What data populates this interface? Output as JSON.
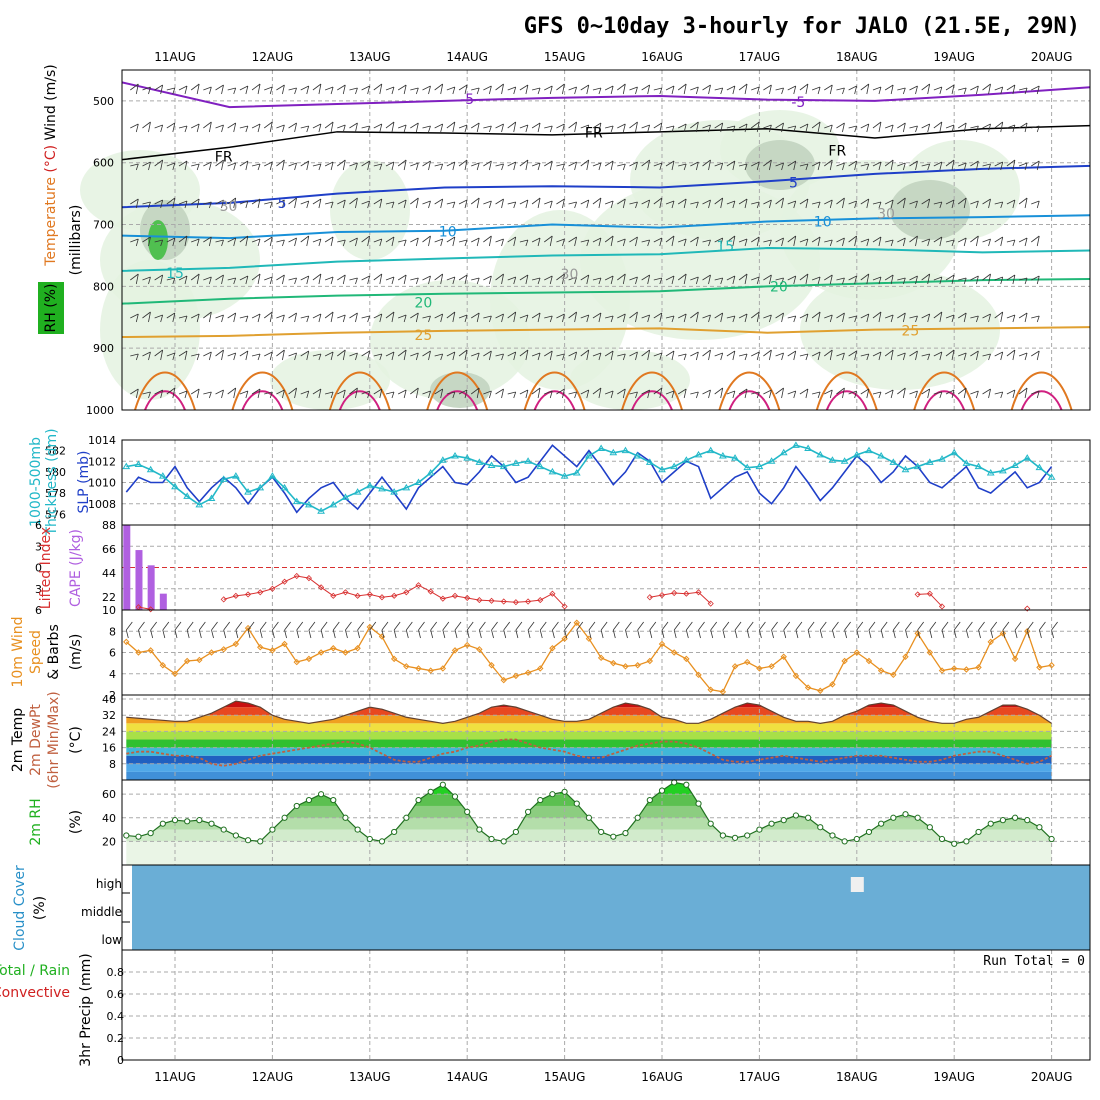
{
  "title": "GFS 0~10day 3-hourly for JALO (21.5E, 29N)",
  "dates": [
    "11AUG",
    "12AUG",
    "13AUG",
    "14AUG",
    "15AUG",
    "16AUG",
    "17AUG",
    "18AUG",
    "19AUG",
    "20AUG"
  ],
  "colors": {
    "slp": "#1f3fc8",
    "thickness": "#22b8c8",
    "lifted": "#d83030",
    "cape": "#b060e0",
    "wind10": "#e89020",
    "rh": "#20b020",
    "cloud": "#6aaed6",
    "dewpt": "#c06040",
    "hotter": "#c00000"
  },
  "chart_data": [
    {
      "panel": "upper-air",
      "type": "heatmap",
      "ylabel_parts": [
        "Temperature",
        "(°C)",
        "Wind",
        "(m/s)"
      ],
      "ylabel_unit": "(millibars)",
      "rh_label": "RH (%)",
      "ylim": [
        1000,
        450
      ],
      "yticks": [
        1000,
        900,
        800,
        700,
        600,
        500
      ],
      "contour_labels": [
        {
          "text": "-5",
          "day": 3.0,
          "p": 497
        },
        {
          "text": "-5",
          "day": 6.4,
          "p": 502
        },
        {
          "text": "FR",
          "day": 0.5,
          "p": 590
        },
        {
          "text": "FR",
          "day": 4.3,
          "p": 551
        },
        {
          "text": "FR",
          "day": 6.8,
          "p": 580
        },
        {
          "text": "5",
          "day": 1.1,
          "p": 665
        },
        {
          "text": "5",
          "day": 6.35,
          "p": 632
        },
        {
          "text": "10",
          "day": 2.8,
          "p": 711
        },
        {
          "text": "10",
          "day": 6.65,
          "p": 695
        },
        {
          "text": "15",
          "day": 0.0,
          "p": 778
        },
        {
          "text": "15",
          "day": 5.65,
          "p": 735
        },
        {
          "text": "20",
          "day": 2.55,
          "p": 826
        },
        {
          "text": "20",
          "day": 6.2,
          "p": 800
        },
        {
          "text": "25",
          "day": 2.55,
          "p": 879
        },
        {
          "text": "25",
          "day": 7.55,
          "p": 871
        },
        {
          "text": "30",
          "day": 0.55,
          "p": 670
        },
        {
          "text": "30",
          "day": 4.05,
          "p": 780
        },
        {
          "text": "30",
          "day": 7.3,
          "p": 682
        }
      ],
      "isotherms": [
        {
          "label": "-5",
          "p": [
            470,
            510,
            505,
            500,
            495,
            492,
            498,
            500,
            490,
            478
          ]
        },
        {
          "label": "FR",
          "p": [
            595,
            575,
            550,
            552,
            555,
            550,
            545,
            560,
            545,
            540
          ]
        },
        {
          "label": "5",
          "p": [
            672,
            665,
            650,
            640,
            638,
            640,
            630,
            618,
            610,
            605
          ]
        },
        {
          "label": "10",
          "p": [
            718,
            722,
            712,
            710,
            700,
            705,
            695,
            690,
            688,
            685
          ]
        },
        {
          "label": "15",
          "p": [
            775,
            770,
            760,
            755,
            750,
            748,
            738,
            740,
            745,
            742
          ]
        },
        {
          "label": "20",
          "p": [
            828,
            820,
            815,
            812,
            810,
            808,
            800,
            795,
            790,
            788
          ]
        },
        {
          "label": "25",
          "p": [
            882,
            880,
            875,
            872,
            870,
            868,
            875,
            870,
            868,
            866
          ]
        }
      ]
    },
    {
      "panel": "slp-thickness",
      "type": "line",
      "ylabel_left": [
        "1000-500mb",
        "Thickness (dm)"
      ],
      "ylabel_right": "SLP (mb)",
      "slp_ylim": [
        1006,
        1014
      ],
      "slp_ticks": [
        1008,
        1010,
        1012,
        1014
      ],
      "thk_ylim": [
        575,
        583
      ],
      "thk_ticks": [
        576,
        578,
        580,
        582
      ],
      "series": [
        {
          "name": "SLP (mb)",
          "axis": "slp",
          "values": [
            1009.1,
            1010.5,
            1010.0,
            1010.0,
            1011.5,
            1009.5,
            1008.2,
            1009.5,
            1010.5,
            1009.5,
            1008.0,
            1009.5,
            1010.5,
            1009.0,
            1007.2,
            1008.5,
            1009.5,
            1010.0,
            1008.5,
            1007.5,
            1009.0,
            1010.5,
            1009.0,
            1007.5,
            1009.5,
            1010.5,
            1011.5,
            1010.0,
            1009.8,
            1011.0,
            1012.5,
            1011.5,
            1010.0,
            1010.5,
            1012.0,
            1013.5,
            1012.5,
            1011.5,
            1013.0,
            1011.5,
            1009.8,
            1011.0,
            1012.8,
            1012.0,
            1010.0,
            1011.0,
            1012.0,
            1011.5,
            1008.5,
            1009.5,
            1010.5,
            1011.0,
            1009.0,
            1008.0,
            1009.5,
            1011.5,
            1010.0,
            1008.3,
            1009.5,
            1011.0,
            1012.5,
            1011.5,
            1010.0,
            1011.0,
            1012.5,
            1011.5,
            1010.0,
            1009.5,
            1010.5,
            1011.5,
            1009.5,
            1009.0,
            1010.0,
            1011.0,
            1009.5,
            1010.0,
            1011.5
          ]
        },
        {
          "name": "1000-500mb Thickness (dm)",
          "axis": "thk",
          "values": [
            580.5,
            580.7,
            580.2,
            579.6,
            578.6,
            577.7,
            576.9,
            577.5,
            579.3,
            579.6,
            578.1,
            578.5,
            579.6,
            578.5,
            577.2,
            576.9,
            576.3,
            576.9,
            577.6,
            578.1,
            578.7,
            578.4,
            578.1,
            578.5,
            579.0,
            579.9,
            581.1,
            581.5,
            581.3,
            580.9,
            580.6,
            580.5,
            580.8,
            581.0,
            580.5,
            580.0,
            579.6,
            579.9,
            581.5,
            582.2,
            581.8,
            582.0,
            581.5,
            580.9,
            580.2,
            580.5,
            581.1,
            581.6,
            582.0,
            581.5,
            581.3,
            580.4,
            580.5,
            581.0,
            581.8,
            582.5,
            582.2,
            581.6,
            581.1,
            581.0,
            581.6,
            582.0,
            581.5,
            580.9,
            580.2,
            580.5,
            580.9,
            581.2,
            581.8,
            580.8,
            580.5,
            579.9,
            580.1,
            580.6,
            581.3,
            580.4,
            579.5
          ]
        }
      ]
    },
    {
      "panel": "lifted-cape",
      "type": "bar",
      "ylabel_left": "Lifted Index",
      "ylabel_right": "CAPE (J/kg)",
      "li_ticks": [
        6,
        3,
        0,
        -3,
        -6
      ],
      "cape_ticks": [
        10,
        22,
        44,
        66,
        88
      ],
      "cape_ylim": [
        10,
        88
      ],
      "li_ylim": [
        6,
        -6
      ],
      "cape_values": [
        88,
        65,
        51,
        25,
        0,
        0,
        0,
        0,
        0,
        0,
        0,
        0,
        0,
        0,
        0,
        0,
        0,
        0,
        0,
        0,
        0,
        0,
        0,
        0,
        0,
        0,
        0,
        0,
        0,
        0,
        0,
        0,
        0,
        0,
        0,
        0,
        0,
        0,
        0,
        0,
        0,
        0,
        0,
        0,
        0,
        0,
        0,
        0,
        0,
        0,
        0,
        0,
        0,
        0,
        0,
        0,
        0,
        0,
        0,
        0,
        0,
        0,
        0,
        0,
        0,
        0,
        0,
        0,
        0,
        0,
        0,
        0,
        0,
        0,
        0,
        0,
        0
      ],
      "lifted_values": [
        null,
        5.6,
        5.9,
        null,
        null,
        null,
        null,
        null,
        4.5,
        4.0,
        3.8,
        3.5,
        3.0,
        2.0,
        1.2,
        1.5,
        2.8,
        4.0,
        3.5,
        4.0,
        3.8,
        4.2,
        4.0,
        3.5,
        2.5,
        3.4,
        4.4,
        4.0,
        4.3,
        4.6,
        4.7,
        4.8,
        4.9,
        4.8,
        4.6,
        3.7,
        5.5,
        null,
        null,
        null,
        null,
        null,
        null,
        4.2,
        3.9,
        3.6,
        3.7,
        3.5,
        5.1,
        null,
        null,
        null,
        null,
        null,
        null,
        null,
        null,
        null,
        null,
        null,
        null,
        null,
        null,
        null,
        null,
        3.8,
        3.7,
        5.5,
        null,
        null,
        null,
        null,
        null,
        null,
        5.8,
        null,
        null
      ]
    },
    {
      "panel": "wind10m",
      "type": "line",
      "ylabel_parts": [
        "10m Wind",
        "Speed",
        "& Barbs",
        "(m/s)"
      ],
      "ylim": [
        2,
        10
      ],
      "yticks": [
        2,
        4,
        6,
        8
      ],
      "series": [
        {
          "name": "10m Wind Speed",
          "values": [
            7.0,
            6.0,
            6.2,
            4.8,
            4.0,
            5.2,
            5.3,
            6.0,
            6.3,
            6.8,
            8.3,
            6.5,
            6.2,
            6.8,
            5.1,
            5.4,
            6.0,
            6.4,
            6.0,
            6.4,
            8.4,
            7.5,
            5.4,
            4.7,
            4.5,
            4.3,
            4.5,
            6.2,
            6.7,
            6.3,
            4.8,
            3.4,
            3.8,
            4.1,
            4.5,
            6.4,
            7.3,
            8.8,
            7.3,
            5.5,
            5.0,
            4.7,
            4.8,
            5.2,
            6.8,
            6.0,
            5.4,
            3.9,
            2.5,
            2.3,
            4.7,
            5.1,
            4.5,
            4.7,
            5.6,
            3.8,
            2.7,
            2.4,
            3.0,
            5.2,
            6.0,
            5.2,
            4.3,
            3.9,
            5.6,
            7.8,
            6.0,
            4.3,
            4.5,
            4.4,
            4.6,
            7.0,
            7.8,
            5.4,
            8.0,
            4.6,
            4.8
          ]
        }
      ]
    },
    {
      "panel": "temperature",
      "type": "area",
      "ylabel_parts": [
        "2m Temp",
        "2m DewPt",
        "(6hr Min/Max)",
        "(°C)"
      ],
      "ylim": [
        0,
        42
      ],
      "yticks": [
        8,
        16,
        24,
        32,
        40
      ],
      "series": [
        {
          "name": "2m Temp",
          "values": [
            31,
            30.5,
            30,
            29.5,
            29,
            29,
            31,
            33,
            36,
            39,
            38,
            36,
            32,
            30,
            29,
            28,
            29,
            30,
            32,
            34,
            36,
            35,
            33,
            31,
            30,
            29,
            28,
            29,
            31,
            33,
            36,
            37,
            36,
            34,
            32,
            30,
            29,
            29,
            30,
            33,
            36,
            38,
            37,
            35,
            31,
            30,
            28,
            28,
            30,
            33,
            36,
            38,
            37,
            34,
            31,
            29,
            29,
            28,
            29,
            32,
            34,
            37,
            38,
            37,
            34,
            31,
            29,
            28,
            28,
            30,
            31,
            34,
            37,
            37,
            35,
            32,
            28
          ]
        },
        {
          "name": "2m DewPt",
          "values": [
            13,
            14,
            14,
            13,
            12,
            12,
            11,
            8,
            7,
            8,
            10,
            12,
            13,
            14,
            15,
            16,
            17,
            18,
            19,
            18,
            16,
            13,
            10,
            9,
            9,
            11,
            13,
            14,
            16,
            17,
            19,
            20,
            20,
            18,
            16,
            15,
            14,
            12,
            11,
            11,
            13,
            15,
            17,
            18,
            19,
            19,
            18,
            16,
            13,
            10,
            9,
            9,
            10,
            11,
            12,
            11,
            10,
            9,
            10,
            11,
            12,
            12,
            12,
            11,
            10,
            9,
            9,
            10,
            12,
            13,
            14,
            14,
            12,
            10,
            8,
            9,
            12
          ]
        }
      ]
    },
    {
      "panel": "rh2m",
      "type": "area",
      "ylabel_parts": [
        "2m RH",
        "(%)"
      ],
      "ylim": [
        0,
        72
      ],
      "yticks": [
        20,
        40,
        60
      ],
      "series": [
        {
          "name": "2m RH",
          "values": [
            25,
            24,
            27,
            35,
            38,
            37,
            38,
            35,
            30,
            25,
            21,
            20,
            30,
            40,
            50,
            55,
            60,
            55,
            40,
            30,
            22,
            20,
            28,
            40,
            55,
            62,
            68,
            58,
            45,
            30,
            22,
            20,
            28,
            45,
            55,
            60,
            62,
            52,
            40,
            28,
            24,
            27,
            40,
            55,
            63,
            70,
            68,
            52,
            35,
            25,
            23,
            25,
            30,
            35,
            38,
            42,
            40,
            32,
            25,
            20,
            22,
            28,
            35,
            40,
            43,
            40,
            32,
            22,
            18,
            20,
            28,
            35,
            38,
            40,
            38,
            32,
            22
          ]
        }
      ]
    },
    {
      "panel": "cloud-cover",
      "type": "heatmap",
      "ylabel_parts": [
        "Cloud Cover",
        "(%)"
      ],
      "levels": [
        "high",
        "middle",
        "low"
      ],
      "high_cloud_day": 7.0
    },
    {
      "panel": "precip",
      "type": "bar",
      "ylabel_parts": [
        "Total / Rain",
        "Convective",
        "3hr Precip (mm)"
      ],
      "ylim": [
        0,
        1.0
      ],
      "yticks": [
        0,
        0.2,
        0.4,
        0.6,
        0.8
      ],
      "run_total": "Run Total = 0",
      "total_values": [],
      "convective_values": []
    }
  ]
}
